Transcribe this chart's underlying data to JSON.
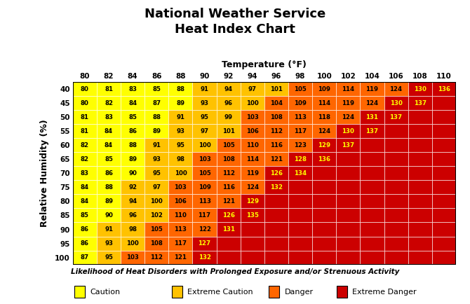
{
  "title_line1": "National Weather Service",
  "title_line2": "Heat Index Chart",
  "xlabel": "Temperature (°F)",
  "ylabel": "Relative Humidity (%)",
  "temps": [
    80,
    82,
    84,
    86,
    88,
    90,
    92,
    94,
    96,
    98,
    100,
    102,
    104,
    106,
    108,
    110
  ],
  "humids": [
    40,
    45,
    50,
    55,
    60,
    65,
    70,
    75,
    80,
    85,
    90,
    95,
    100
  ],
  "table": [
    [
      80,
      81,
      83,
      85,
      88,
      91,
      94,
      97,
      101,
      105,
      109,
      114,
      119,
      124,
      130,
      136
    ],
    [
      80,
      82,
      84,
      87,
      89,
      93,
      96,
      100,
      104,
      109,
      114,
      119,
      124,
      130,
      137,
      null
    ],
    [
      81,
      83,
      85,
      88,
      91,
      95,
      99,
      103,
      108,
      113,
      118,
      124,
      131,
      137,
      null,
      null
    ],
    [
      81,
      84,
      86,
      89,
      93,
      97,
      101,
      106,
      112,
      117,
      124,
      130,
      137,
      null,
      null,
      null
    ],
    [
      82,
      84,
      88,
      91,
      95,
      100,
      105,
      110,
      116,
      123,
      129,
      137,
      null,
      null,
      null,
      null
    ],
    [
      82,
      85,
      89,
      93,
      98,
      103,
      108,
      114,
      121,
      128,
      136,
      null,
      null,
      null,
      null,
      null
    ],
    [
      83,
      86,
      90,
      95,
      100,
      105,
      112,
      119,
      126,
      134,
      null,
      null,
      null,
      null,
      null,
      null
    ],
    [
      84,
      88,
      92,
      97,
      103,
      109,
      116,
      124,
      132,
      null,
      null,
      null,
      null,
      null,
      null,
      null
    ],
    [
      84,
      89,
      94,
      100,
      106,
      113,
      121,
      129,
      null,
      null,
      null,
      null,
      null,
      null,
      null,
      null
    ],
    [
      85,
      90,
      96,
      102,
      110,
      117,
      126,
      135,
      null,
      null,
      null,
      null,
      null,
      null,
      null,
      null
    ],
    [
      86,
      91,
      98,
      105,
      113,
      122,
      131,
      null,
      null,
      null,
      null,
      null,
      null,
      null,
      null,
      null
    ],
    [
      86,
      93,
      100,
      108,
      117,
      127,
      null,
      null,
      null,
      null,
      null,
      null,
      null,
      null,
      null,
      null
    ],
    [
      87,
      95,
      103,
      112,
      121,
      132,
      null,
      null,
      null,
      null,
      null,
      null,
      null,
      null,
      null,
      null
    ]
  ],
  "color_caution": "#FFFF00",
  "color_extreme_caution": "#FFC200",
  "color_danger": "#FF6600",
  "color_extreme_danger": "#CC0000",
  "color_empty": "#CC0000",
  "bg_color": "#FFFFFF",
  "border_color": "#000000",
  "text_color_dark": "#000000",
  "text_color_light": "#FFFF00",
  "legend_label_caution": "Caution",
  "legend_label_extreme_caution": "Extreme Caution",
  "legend_label_danger": "Danger",
  "legend_label_extreme_danger": "Extreme Danger",
  "legend_title": "Likelihood of Heat Disorders with Prolonged Exposure and/or Strenuous Activity"
}
